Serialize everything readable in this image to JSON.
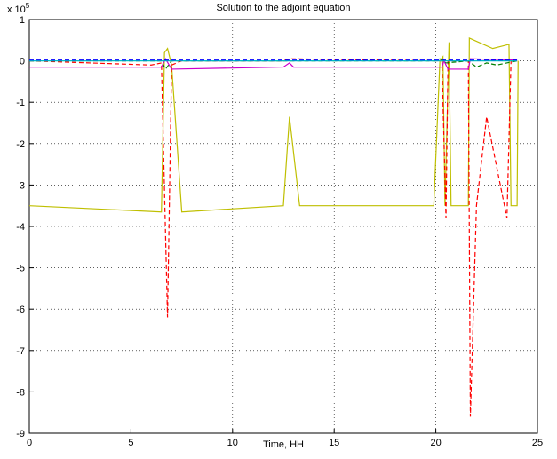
{
  "chart_data": {
    "type": "line",
    "title": "Solution to the adjoint equation",
    "x_label": "Time, HH",
    "y_multiplier": {
      "base": "x 10",
      "power": "5"
    },
    "xlim": [
      0,
      25
    ],
    "xticks": [
      0,
      5,
      10,
      15,
      20,
      25
    ],
    "ylim": [
      -9,
      1
    ],
    "yticks": [
      1,
      0,
      -1,
      -2,
      -3,
      -4,
      -5,
      -6,
      -7,
      -8,
      -9
    ],
    "grid": true,
    "series": [
      {
        "color": "#bfbf00",
        "style": "solid",
        "x": [
          0,
          6.5,
          6.65,
          6.8,
          7.0,
          7.5,
          12.5,
          12.8,
          13.3,
          19.9,
          20.2,
          20.35,
          20.45,
          20.65,
          20.75,
          21.6,
          21.65,
          22.8,
          23.6,
          23.7,
          24.0,
          24.05
        ],
        "values": [
          -3.5,
          -3.65,
          0.2,
          0.3,
          -0.1,
          -3.65,
          -3.5,
          -1.35,
          -3.5,
          -3.5,
          0,
          0.1,
          -3.5,
          0.45,
          -3.5,
          -3.5,
          0.55,
          0.3,
          0.4,
          -3.5,
          -3.5,
          0
        ]
      },
      {
        "color": "#ff0000",
        "style": "dashed",
        "x": [
          0,
          6.0,
          6.5,
          6.8,
          7.0,
          7.5,
          12.5,
          12.8,
          20.3,
          20.5,
          20.6,
          21.6,
          21.7,
          22.0,
          22.5,
          23.5,
          23.7,
          24.0
        ],
        "values": [
          0,
          -0.1,
          -0.05,
          -6.2,
          -0.1,
          0,
          0,
          0.05,
          0,
          -3.8,
          0,
          0,
          -8.6,
          -3.5,
          -1.35,
          -3.8,
          0,
          0
        ]
      },
      {
        "color": "#008000",
        "style": "dashed",
        "x": [
          0,
          6.5,
          6.7,
          7.0,
          20.0,
          20.2,
          20.5,
          21.6,
          22.0,
          22.5,
          23.0,
          24.0
        ],
        "values": [
          0,
          0,
          -0.2,
          0,
          0,
          0.05,
          -0.05,
          0,
          -0.15,
          -0.05,
          -0.1,
          0
        ]
      },
      {
        "color": "#cc00cc",
        "style": "solid",
        "x": [
          0,
          6.5,
          6.7,
          7.0,
          12.5,
          12.8,
          13.0,
          20.3,
          20.4,
          20.6,
          21.6,
          21.7,
          24.0
        ],
        "values": [
          -0.15,
          -0.15,
          0.05,
          -0.2,
          -0.15,
          -0.05,
          -0.15,
          -0.15,
          0,
          -0.2,
          -0.2,
          0.05,
          0.02
        ]
      },
      {
        "color": "#00bfbf",
        "style": "solid",
        "x": [
          0,
          24.0
        ],
        "values": [
          0,
          0
        ]
      },
      {
        "color": "#0000ff",
        "style": "dashed",
        "x": [
          0,
          24.0
        ],
        "values": [
          0.02,
          0.02
        ]
      }
    ]
  }
}
